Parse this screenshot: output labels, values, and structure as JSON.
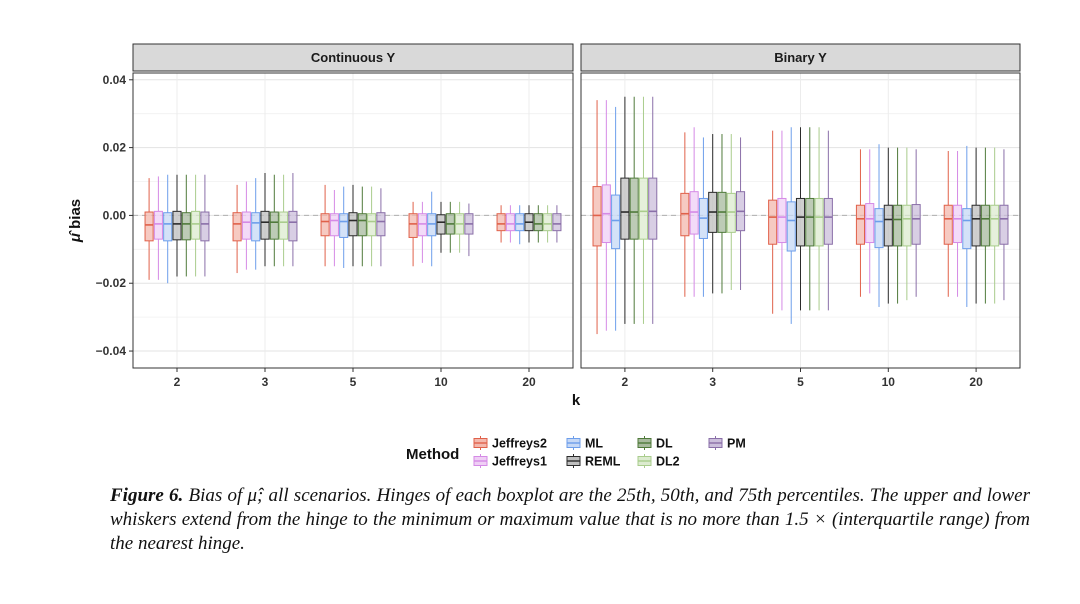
{
  "chart_data": {
    "type": "boxplot",
    "xlabel": "k",
    "ylabel": "bias",
    "ylabel_symbol": "μ̂",
    "ylim": [
      -0.045,
      0.042
    ],
    "y_ticks": [
      -0.04,
      -0.02,
      0.0,
      0.02,
      0.04
    ],
    "y_tick_labels": [
      "−0.04",
      "−0.02",
      "0.00",
      "0.02",
      "0.04"
    ],
    "categories": [
      "2",
      "3",
      "5",
      "10",
      "20"
    ],
    "reference_line": 0.0,
    "legend": {
      "title": "Method",
      "entries": [
        "Jeffreys2",
        "Jeffreys1",
        "ML",
        "REML",
        "DL",
        "DL2",
        "PM"
      ],
      "colors": [
        "#e0614a",
        "#d58ae6",
        "#6d9eeb",
        "#2b2b2b",
        "#4f7a3a",
        "#a9cc8c",
        "#8a6fa8"
      ],
      "fills": [
        "#f3b8ad",
        "#efcff5",
        "#c5d8f6",
        "#bfbfbf",
        "#a7b99d",
        "#dcebcf",
        "#cbbedb"
      ]
    },
    "panels": [
      {
        "title": "Continuous Y",
        "series": [
          {
            "name": "Jeffreys2",
            "boxes": [
              [
                -0.019,
                -0.0075,
                -0.0028,
                0.001,
                0.011
              ],
              [
                -0.017,
                -0.0075,
                -0.0025,
                0.0008,
                0.009
              ],
              [
                -0.015,
                -0.006,
                -0.0018,
                0.0005,
                0.009
              ],
              [
                -0.015,
                -0.0065,
                -0.0025,
                0.0005,
                0.004
              ],
              [
                -0.008,
                -0.0045,
                -0.0025,
                0.0005,
                0.003
              ]
            ]
          },
          {
            "name": "Jeffreys1",
            "boxes": [
              [
                -0.019,
                -0.007,
                -0.0025,
                0.0012,
                0.0115
              ],
              [
                -0.016,
                -0.007,
                -0.002,
                0.001,
                0.01
              ],
              [
                -0.015,
                -0.006,
                -0.0015,
                0.0005,
                0.0075
              ],
              [
                -0.014,
                -0.006,
                -0.0025,
                0.0005,
                0.004
              ],
              [
                -0.008,
                -0.0045,
                -0.0025,
                0.0005,
                0.003
              ]
            ]
          },
          {
            "name": "ML",
            "boxes": [
              [
                -0.02,
                -0.0075,
                -0.0025,
                0.0008,
                0.012
              ],
              [
                -0.016,
                -0.0075,
                -0.0022,
                0.0008,
                0.011
              ],
              [
                -0.0155,
                -0.0065,
                -0.0018,
                0.0005,
                0.0085
              ],
              [
                -0.015,
                -0.006,
                -0.0025,
                0.0005,
                0.007
              ],
              [
                -0.0085,
                -0.0045,
                -0.0025,
                0.0005,
                0.003
              ]
            ]
          },
          {
            "name": "REML",
            "boxes": [
              [
                -0.018,
                -0.0072,
                -0.0025,
                0.0012,
                0.012
              ],
              [
                -0.015,
                -0.007,
                -0.002,
                0.0012,
                0.0125
              ],
              [
                -0.015,
                -0.006,
                -0.0015,
                0.0008,
                0.009
              ],
              [
                -0.011,
                -0.0055,
                -0.002,
                0.0002,
                0.004
              ],
              [
                -0.008,
                -0.0045,
                -0.002,
                0.0005,
                0.003
              ]
            ]
          },
          {
            "name": "DL",
            "boxes": [
              [
                -0.018,
                -0.0072,
                -0.0025,
                0.0008,
                0.012
              ],
              [
                -0.015,
                -0.007,
                -0.002,
                0.001,
                0.012
              ],
              [
                -0.015,
                -0.006,
                -0.0015,
                0.0005,
                0.0085
              ],
              [
                -0.011,
                -0.0055,
                -0.0025,
                0.0005,
                0.004
              ],
              [
                -0.008,
                -0.0045,
                -0.0025,
                0.0005,
                0.003
              ]
            ]
          },
          {
            "name": "DL2",
            "boxes": [
              [
                -0.018,
                -0.007,
                -0.0025,
                0.0012,
                0.012
              ],
              [
                -0.015,
                -0.007,
                -0.002,
                0.001,
                0.012
              ],
              [
                -0.015,
                -0.006,
                -0.0018,
                0.0005,
                0.0085
              ],
              [
                -0.011,
                -0.0055,
                -0.0025,
                0.0005,
                0.004
              ],
              [
                -0.008,
                -0.0045,
                -0.0025,
                0.0005,
                0.003
              ]
            ]
          },
          {
            "name": "PM",
            "boxes": [
              [
                -0.018,
                -0.0075,
                -0.0025,
                0.001,
                0.012
              ],
              [
                -0.015,
                -0.0075,
                -0.002,
                0.0012,
                0.0125
              ],
              [
                -0.015,
                -0.006,
                -0.0018,
                0.0008,
                0.008
              ],
              [
                -0.012,
                -0.0055,
                -0.0025,
                0.0005,
                0.0035
              ],
              [
                -0.008,
                -0.0045,
                -0.0025,
                0.0005,
                0.003
              ]
            ]
          }
        ]
      },
      {
        "title": "Binary Y",
        "series": [
          {
            "name": "Jeffreys2",
            "boxes": [
              [
                -0.035,
                -0.009,
                0.0,
                0.0085,
                0.034
              ],
              [
                -0.024,
                -0.006,
                0.0005,
                0.0065,
                0.0245
              ],
              [
                -0.029,
                -0.0085,
                -0.0005,
                0.0045,
                0.025
              ],
              [
                -0.024,
                -0.0085,
                -0.001,
                0.003,
                0.0195
              ],
              [
                -0.024,
                -0.0085,
                -0.001,
                0.003,
                0.019
              ]
            ]
          },
          {
            "name": "Jeffreys1",
            "boxes": [
              [
                -0.034,
                -0.008,
                0.0005,
                0.009,
                0.034
              ],
              [
                -0.024,
                -0.0055,
                0.001,
                0.007,
                0.026
              ],
              [
                -0.028,
                -0.008,
                -0.0005,
                0.005,
                0.025
              ],
              [
                -0.023,
                -0.008,
                -0.001,
                0.0035,
                0.0195
              ],
              [
                -0.024,
                -0.008,
                -0.001,
                0.003,
                0.019
              ]
            ]
          },
          {
            "name": "ML",
            "boxes": [
              [
                -0.034,
                -0.0098,
                -0.0015,
                0.006,
                0.032
              ],
              [
                -0.024,
                -0.0068,
                -0.0008,
                0.005,
                0.023
              ],
              [
                -0.032,
                -0.0105,
                -0.0015,
                0.004,
                0.026
              ],
              [
                -0.027,
                -0.0095,
                -0.0018,
                0.002,
                0.021
              ],
              [
                -0.027,
                -0.0098,
                -0.0015,
                0.002,
                0.0205
              ]
            ]
          },
          {
            "name": "REML",
            "boxes": [
              [
                -0.032,
                -0.007,
                0.001,
                0.011,
                0.035
              ],
              [
                -0.023,
                -0.005,
                0.001,
                0.0068,
                0.024
              ],
              [
                -0.028,
                -0.009,
                -0.0005,
                0.005,
                0.026
              ],
              [
                -0.026,
                -0.009,
                -0.0012,
                0.003,
                0.02
              ],
              [
                -0.026,
                -0.009,
                -0.001,
                0.003,
                0.02
              ]
            ]
          },
          {
            "name": "DL",
            "boxes": [
              [
                -0.032,
                -0.007,
                0.001,
                0.011,
                0.035
              ],
              [
                -0.023,
                -0.005,
                0.001,
                0.0068,
                0.024
              ],
              [
                -0.028,
                -0.009,
                -0.0005,
                0.005,
                0.026
              ],
              [
                -0.026,
                -0.009,
                -0.0012,
                0.003,
                0.02
              ],
              [
                -0.026,
                -0.009,
                -0.001,
                0.003,
                0.02
              ]
            ]
          },
          {
            "name": "DL2",
            "boxes": [
              [
                -0.032,
                -0.007,
                0.0012,
                0.011,
                0.035
              ],
              [
                -0.022,
                -0.005,
                0.001,
                0.0065,
                0.024
              ],
              [
                -0.028,
                -0.009,
                -0.0005,
                0.005,
                0.026
              ],
              [
                -0.025,
                -0.009,
                -0.001,
                0.003,
                0.02
              ],
              [
                -0.026,
                -0.009,
                -0.001,
                0.003,
                0.02
              ]
            ]
          },
          {
            "name": "PM",
            "boxes": [
              [
                -0.032,
                -0.007,
                0.0012,
                0.011,
                0.035
              ],
              [
                -0.022,
                -0.0045,
                0.0012,
                0.007,
                0.023
              ],
              [
                -0.028,
                -0.0085,
                -0.0005,
                0.005,
                0.025
              ],
              [
                -0.024,
                -0.0085,
                -0.001,
                0.0032,
                0.0195
              ],
              [
                -0.025,
                -0.0085,
                -0.001,
                0.003,
                0.0195
              ]
            ]
          }
        ]
      }
    ]
  },
  "caption": {
    "label": "Figure 6.",
    "text_before": "Bias of",
    "symbol": "μ̂",
    "text_after": "; all scenarios. Hinges of each boxplot are the 25th, 50th, and 75th percentiles. The upper and lower whiskers extend from the hinge to the minimum or maximum value that is no more than 1.5 × (interquartile range) from the nearest hinge."
  }
}
